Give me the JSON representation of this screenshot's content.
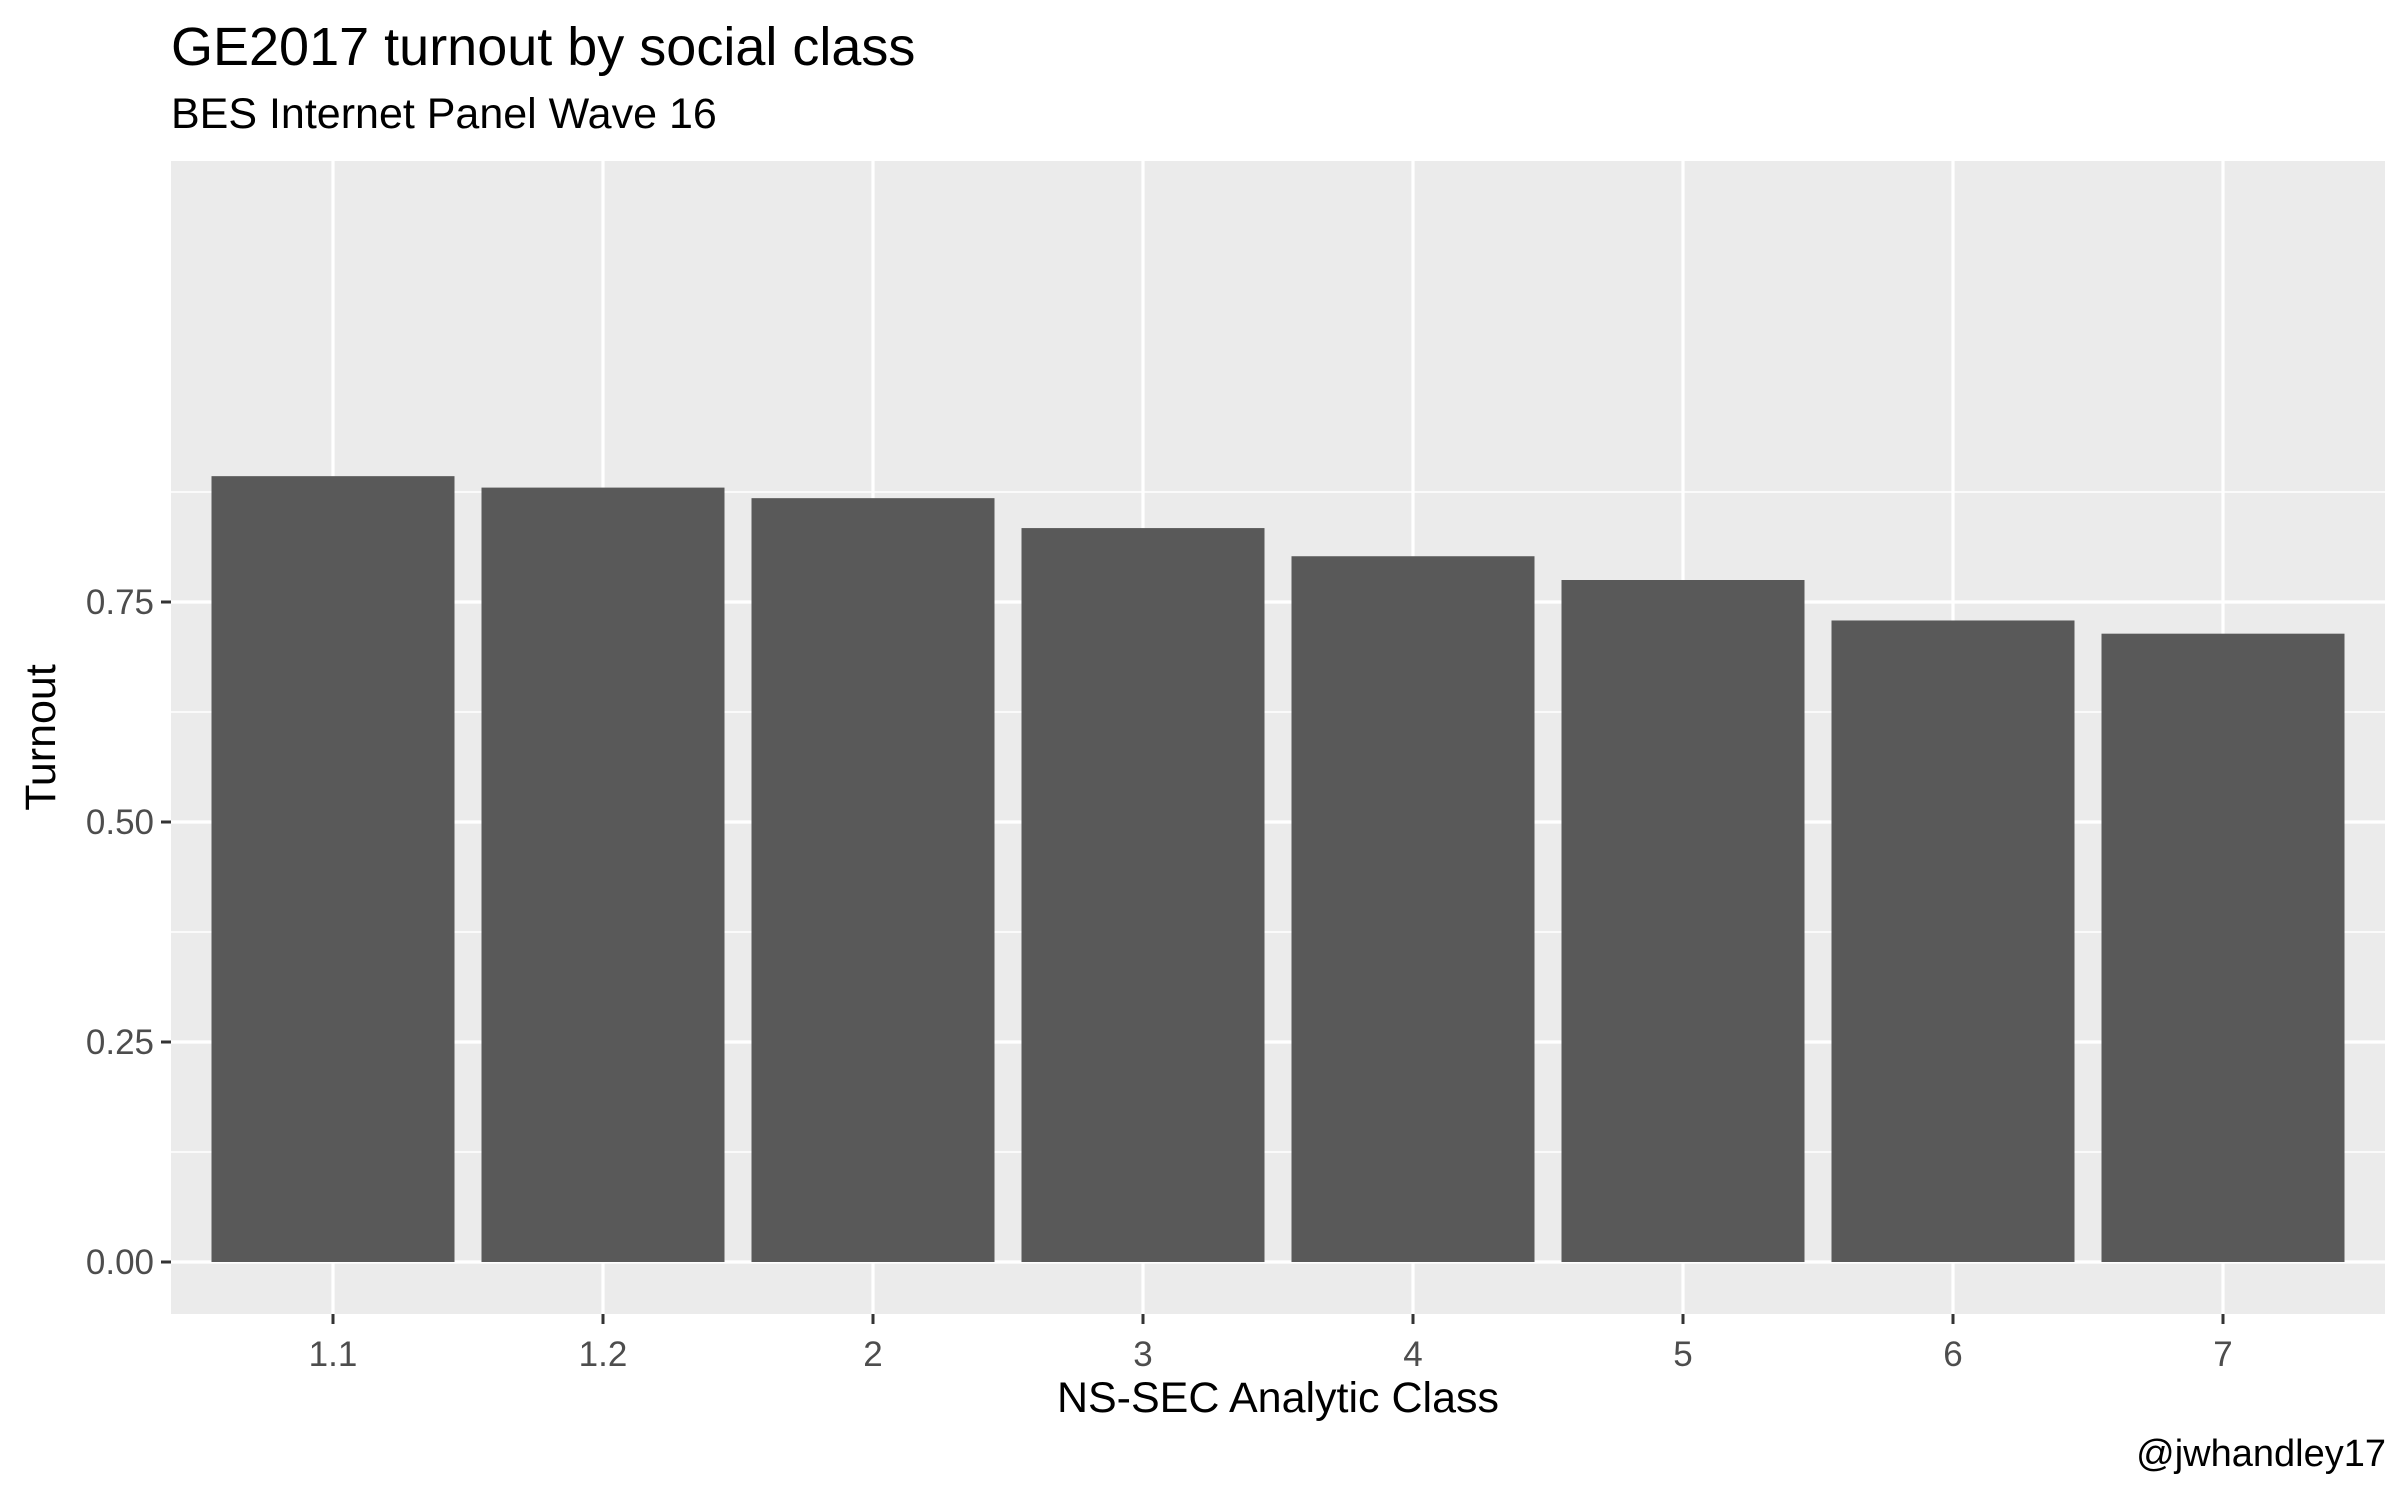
{
  "chart_data": {
    "type": "bar",
    "title": "GE2017 turnout by social class",
    "subtitle": "BES Internet Panel Wave 16",
    "xlabel": "NS-SEC Analytic Class",
    "ylabel": "Turnout",
    "caption": "@jwhandley17",
    "categories": [
      "1.1",
      "1.2",
      "2",
      "3",
      "4",
      "5",
      "6",
      "7"
    ],
    "values": [
      0.893,
      0.88,
      0.868,
      0.834,
      0.802,
      0.775,
      0.729,
      0.714
    ],
    "ylim": [
      0,
      0.9
    ],
    "y_ticks": [
      0,
      0.25,
      0.5,
      0.75
    ],
    "y_tick_labels": [
      "0.00",
      "0.25",
      "0.50",
      "0.75"
    ],
    "grid": true,
    "colors": {
      "bar": "#595959",
      "panel_background": "#ebebeb",
      "grid": "#ffffff",
      "tick_text": "#4d4d4d",
      "tick_mark": "#333333"
    }
  }
}
